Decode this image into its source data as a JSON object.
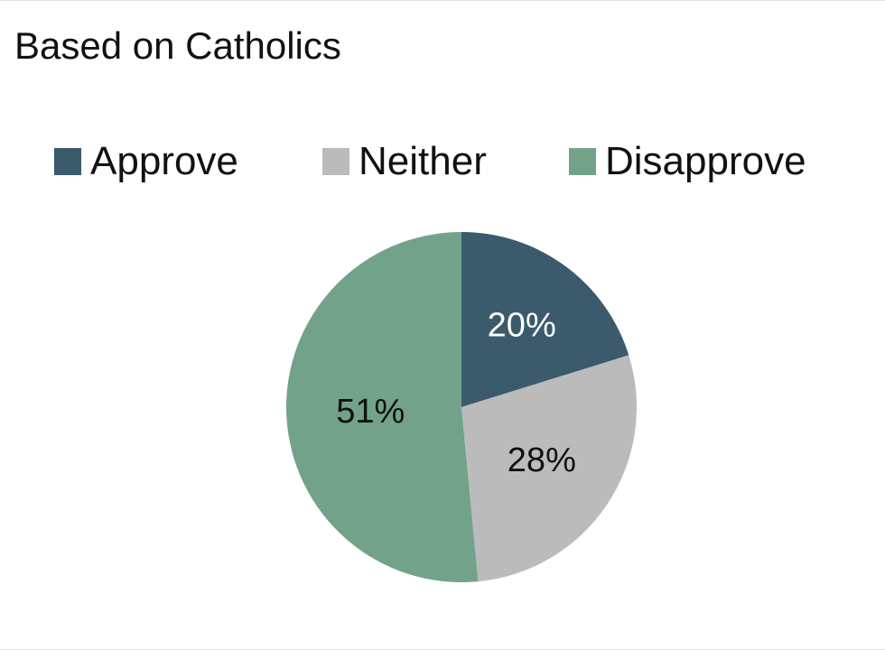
{
  "chart_data": {
    "type": "pie",
    "title": "Based on Catholics",
    "legend_position": "top",
    "categories": [
      "Approve",
      "Neither",
      "Disapprove"
    ],
    "values": [
      20,
      28,
      51
    ],
    "labels": [
      "20%",
      "28%",
      "51%"
    ],
    "colors": [
      "#3b5b6d",
      "#bbbbbb",
      "#72a38a"
    ],
    "label_colors": [
      "#ffffff",
      "#111111",
      "#111111"
    ]
  }
}
